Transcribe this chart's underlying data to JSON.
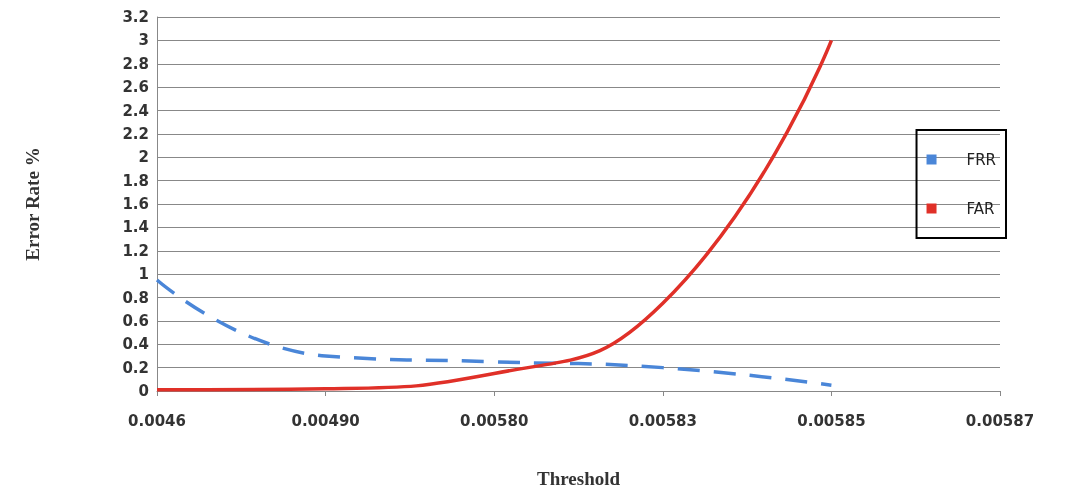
{
  "chart_data": {
    "type": "line",
    "xlabel": "Threshold",
    "ylabel": "Error Rate %",
    "categories": [
      "0.0046",
      "0.00490",
      "0.00580",
      "0.00583",
      "0.00585",
      "0.00587"
    ],
    "series": [
      {
        "name": "FRR",
        "color": "#4a86d8",
        "line_style": "dashed",
        "values": [
          0.95,
          0.3,
          0.25,
          0.2,
          0.05,
          null
        ]
      },
      {
        "name": "FAR",
        "color": "#e03028",
        "line_style": "solid",
        "values": [
          0.01,
          0.02,
          0.15,
          0.75,
          3.0,
          null
        ]
      }
    ],
    "ylim": [
      0,
      3.2
    ],
    "yticks": [
      0,
      0.2,
      0.4,
      0.6,
      0.8,
      1,
      1.2,
      1.4,
      1.6,
      1.8,
      2,
      2.2,
      2.4,
      2.6,
      2.8,
      3,
      3.2
    ],
    "grid": "y",
    "legend": "right",
    "marker": "none"
  }
}
